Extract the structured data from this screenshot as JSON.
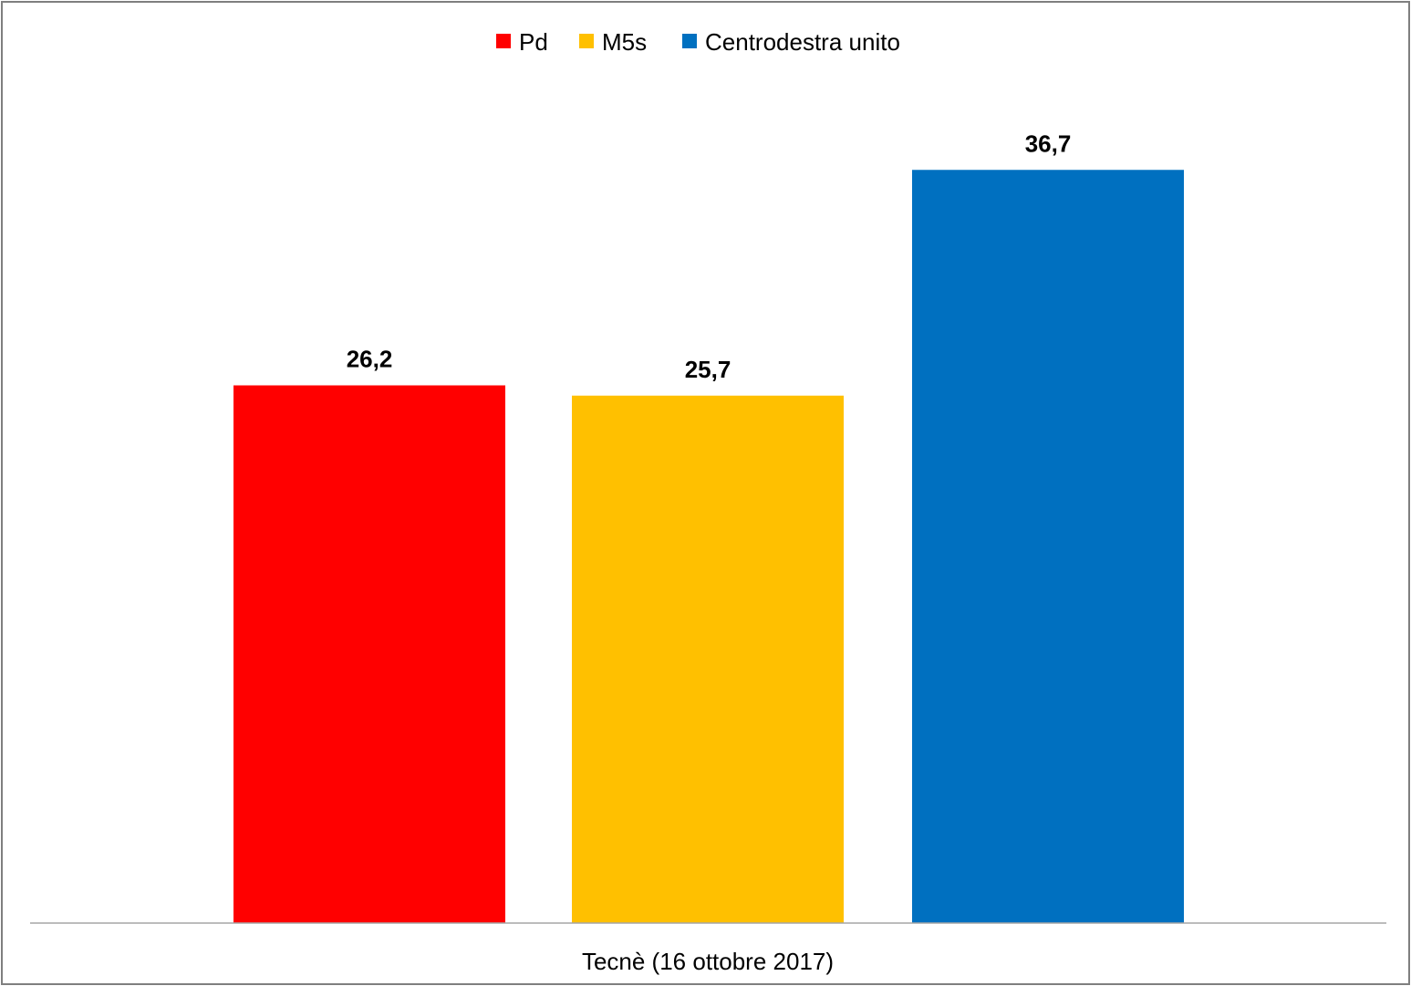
{
  "chart_data": {
    "type": "bar",
    "categories": [
      "Tecnè (16 ottobre 2017)"
    ],
    "series": [
      {
        "name": "Pd",
        "values": [
          26.2
        ],
        "label": "26,2",
        "color": "#FF0000"
      },
      {
        "name": "M5s",
        "values": [
          25.7
        ],
        "label": "25,7",
        "color": "#FFC000"
      },
      {
        "name": "Centrodestra unito",
        "values": [
          36.7
        ],
        "label": "36,7",
        "color": "#0070C0"
      }
    ],
    "ylim": [
      0,
      40
    ],
    "grid": false,
    "legend": "top-center",
    "title": "",
    "xlabel": "",
    "ylabel": ""
  }
}
